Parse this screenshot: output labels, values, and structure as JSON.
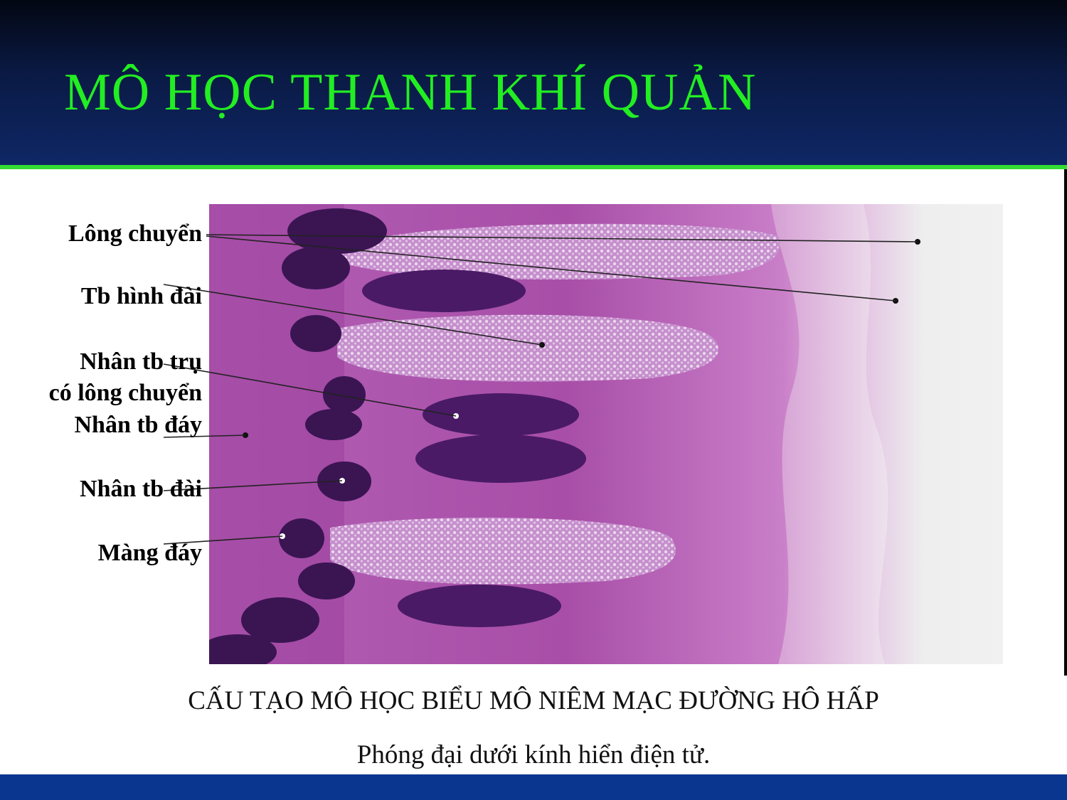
{
  "slide": {
    "title": "MÔ HỌC THANH KHÍ QUẢN",
    "caption_main": "CẤU TẠO MÔ HỌC BIỂU MÔ NIÊM MẠC ĐƯỜNG HÔ HẤP",
    "caption_sub": "Phóng đại dưới kính hiển điện tử.",
    "colors": {
      "title": "#22ee22",
      "header": "#0f2766",
      "accent_line": "#33dd33",
      "footer": "#0a3690"
    }
  },
  "figure": {
    "image_description_icon": "micrograph-respiratory-epithelium",
    "labels": [
      "Lông chuyển",
      "Tb hình đài",
      "Nhân tb trụ",
      "có lông chuyển",
      "Nhân tb đáy",
      "Nhân tb đài",
      "Màng đáy"
    ]
  }
}
